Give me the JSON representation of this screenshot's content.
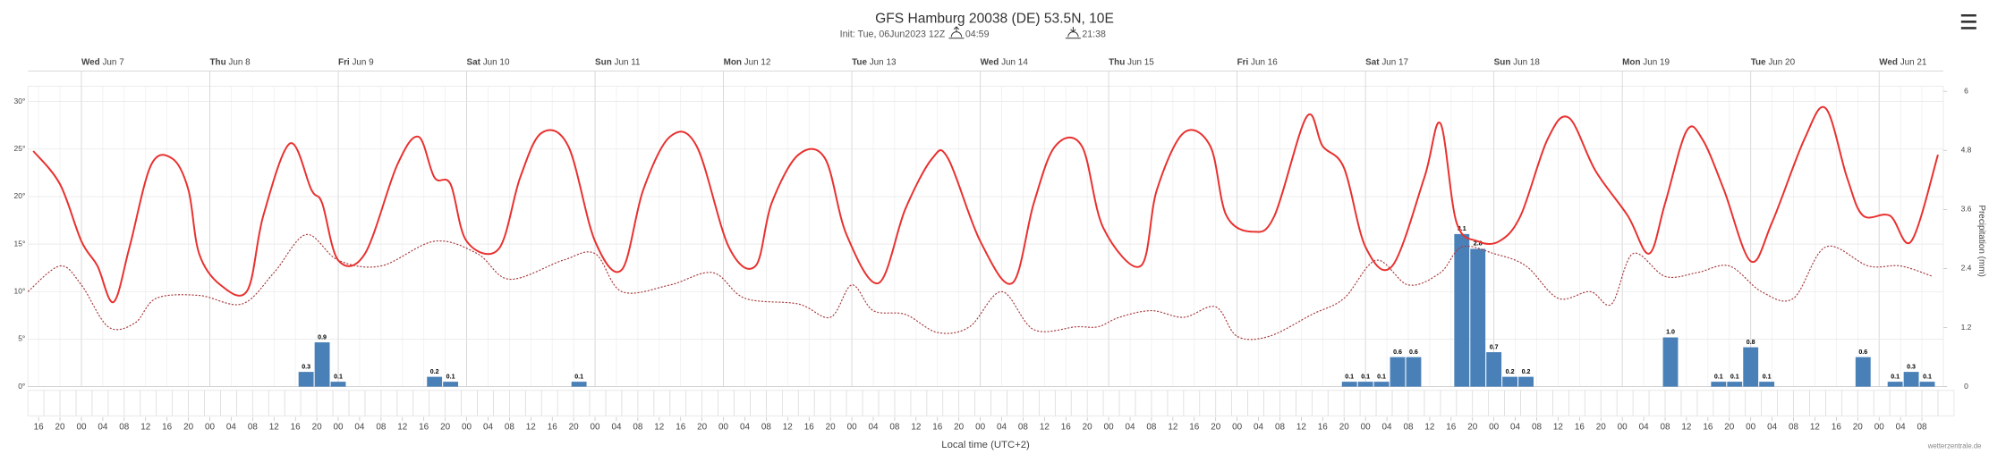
{
  "chart_data": {
    "type": "meteogram",
    "title": "GFS Hamburg 20038 (DE) 53.5N, 10E",
    "init": "Init: Tue, 06Jun2023 12Z",
    "sunrise": "04:59",
    "sunset": "21:38",
    "xlabel": "Local time (UTC+2)",
    "y2label": "Precipitation (mm)",
    "credit": "wetterzentrale.de",
    "grid": true,
    "xlim": [
      -10,
      348
    ],
    "ylim": [
      0,
      31.6
    ],
    "y2lim": [
      0,
      6.1
    ],
    "yticks": [
      {
        "value": 0,
        "label": "0°"
      },
      {
        "value": 5,
        "label": "5°"
      },
      {
        "value": 10,
        "label": "10°"
      },
      {
        "value": 15,
        "label": "15°"
      },
      {
        "value": 20,
        "label": "20°"
      },
      {
        "value": 25,
        "label": "25°"
      },
      {
        "value": 30,
        "label": "30°"
      }
    ],
    "y2ticks": [
      0,
      1.2,
      2.4,
      3.6,
      4.8,
      6
    ],
    "x2ticks": [
      {
        "value": 0,
        "label": "Wed Jun 7"
      },
      {
        "value": 24,
        "label": "Thu Jun 8"
      },
      {
        "value": 48,
        "label": "Fri Jun 9"
      },
      {
        "value": 72,
        "label": "Sat Jun 10"
      },
      {
        "value": 96,
        "label": "Sun Jun 11"
      },
      {
        "value": 120,
        "label": "Mon Jun 12"
      },
      {
        "value": 144,
        "label": "Tue Jun 13"
      },
      {
        "value": 168,
        "label": "Wed Jun 14"
      },
      {
        "value": 192,
        "label": "Thu Jun 15"
      },
      {
        "value": 216,
        "label": "Fri Jun 16"
      },
      {
        "value": 240,
        "label": "Sat Jun 17"
      },
      {
        "value": 264,
        "label": "Sun Jun 18"
      },
      {
        "value": 288,
        "label": "Mon Jun 19"
      },
      {
        "value": 312,
        "label": "Tue Jun 20"
      },
      {
        "value": 336,
        "label": "Wed Jun 21"
      }
    ],
    "xticks": [
      {
        "value": -8,
        "label": "16"
      },
      {
        "value": -4,
        "label": "20"
      },
      {
        "value": 0,
        "label": "00"
      },
      {
        "value": 4,
        "label": "04"
      },
      {
        "value": 8,
        "label": "08"
      },
      {
        "value": 12,
        "label": "12"
      },
      {
        "value": 16,
        "label": "16"
      },
      {
        "value": 20,
        "label": "20"
      },
      {
        "value": 24,
        "label": "00"
      },
      {
        "value": 28,
        "label": "04"
      },
      {
        "value": 32,
        "label": "08"
      },
      {
        "value": 36,
        "label": "12"
      },
      {
        "value": 40,
        "label": "16"
      },
      {
        "value": 44,
        "label": "20"
      },
      {
        "value": 48,
        "label": "00"
      },
      {
        "value": 52,
        "label": "04"
      },
      {
        "value": 56,
        "label": "08"
      },
      {
        "value": 60,
        "label": "12"
      },
      {
        "value": 64,
        "label": "16"
      },
      {
        "value": 68,
        "label": "20"
      },
      {
        "value": 72,
        "label": "00"
      },
      {
        "value": 76,
        "label": "04"
      },
      {
        "value": 80,
        "label": "08"
      },
      {
        "value": 84,
        "label": "12"
      },
      {
        "value": 88,
        "label": "16"
      },
      {
        "value": 92,
        "label": "20"
      },
      {
        "value": 96,
        "label": "00"
      },
      {
        "value": 100,
        "label": "04"
      },
      {
        "value": 104,
        "label": "08"
      },
      {
        "value": 108,
        "label": "12"
      },
      {
        "value": 112,
        "label": "16"
      },
      {
        "value": 116,
        "label": "20"
      },
      {
        "value": 120,
        "label": "00"
      },
      {
        "value": 124,
        "label": "04"
      },
      {
        "value": 128,
        "label": "08"
      },
      {
        "value": 132,
        "label": "12"
      },
      {
        "value": 136,
        "label": "16"
      },
      {
        "value": 140,
        "label": "20"
      },
      {
        "value": 144,
        "label": "00"
      },
      {
        "value": 148,
        "label": "04"
      },
      {
        "value": 152,
        "label": "08"
      },
      {
        "value": 156,
        "label": "12"
      },
      {
        "value": 160,
        "label": "16"
      },
      {
        "value": 164,
        "label": "20"
      },
      {
        "value": 168,
        "label": "00"
      },
      {
        "value": 172,
        "label": "04"
      },
      {
        "value": 176,
        "label": "08"
      },
      {
        "value": 180,
        "label": "12"
      },
      {
        "value": 184,
        "label": "16"
      },
      {
        "value": 188,
        "label": "20"
      },
      {
        "value": 192,
        "label": "00"
      },
      {
        "value": 196,
        "label": "04"
      },
      {
        "value": 200,
        "label": "08"
      },
      {
        "value": 204,
        "label": "12"
      },
      {
        "value": 208,
        "label": "16"
      },
      {
        "value": 212,
        "label": "20"
      },
      {
        "value": 216,
        "label": "00"
      },
      {
        "value": 220,
        "label": "04"
      },
      {
        "value": 224,
        "label": "08"
      },
      {
        "value": 228,
        "label": "12"
      },
      {
        "value": 232,
        "label": "16"
      },
      {
        "value": 236,
        "label": "20"
      },
      {
        "value": 240,
        "label": "00"
      },
      {
        "value": 244,
        "label": "04"
      },
      {
        "value": 248,
        "label": "08"
      },
      {
        "value": 252,
        "label": "12"
      },
      {
        "value": 256,
        "label": "16"
      },
      {
        "value": 260,
        "label": "20"
      },
      {
        "value": 264,
        "label": "00"
      },
      {
        "value": 268,
        "label": "04"
      },
      {
        "value": 272,
        "label": "08"
      },
      {
        "value": 276,
        "label": "12"
      },
      {
        "value": 280,
        "label": "16"
      },
      {
        "value": 284,
        "label": "20"
      },
      {
        "value": 288,
        "label": "00"
      },
      {
        "value": 292,
        "label": "04"
      },
      {
        "value": 296,
        "label": "08"
      },
      {
        "value": 300,
        "label": "12"
      },
      {
        "value": 304,
        "label": "16"
      },
      {
        "value": 308,
        "label": "20"
      },
      {
        "value": 312,
        "label": "00"
      },
      {
        "value": 316,
        "label": "04"
      },
      {
        "value": 320,
        "label": "08"
      },
      {
        "value": 324,
        "label": "12"
      },
      {
        "value": 328,
        "label": "16"
      },
      {
        "value": 332,
        "label": "20"
      },
      {
        "value": 336,
        "label": "00"
      },
      {
        "value": 340,
        "label": "04"
      },
      {
        "value": 344,
        "label": "08"
      }
    ],
    "series": [
      {
        "type": "line",
        "color": "#e8312f",
        "line_style": "solid",
        "x": [
          -9,
          -4,
          0,
          3,
          6,
          9,
          13,
          17,
          20,
          22,
          26,
          31,
          34,
          39,
          43,
          45,
          48,
          53,
          59,
          63,
          66,
          69,
          72,
          78,
          82,
          86,
          91,
          96,
          101,
          105,
          110,
          115,
          121,
          126,
          129,
          134,
          139,
          143,
          149,
          154,
          159,
          162,
          168,
          174,
          178,
          182,
          187,
          191,
          198,
          201,
          206,
          211,
          214,
          219,
          223,
          229,
          232,
          236,
          240,
          245,
          251,
          254,
          257,
          261,
          265,
          269,
          274,
          278,
          283,
          289,
          293,
          296,
          300,
          303,
          307,
          312,
          316,
          322,
          326,
          330,
          333,
          338,
          342,
          347
        ],
        "values": [
          24.8,
          21.3,
          15.3,
          12.7,
          8.9,
          14.7,
          23.3,
          24,
          20.7,
          14,
          10.7,
          10.1,
          18,
          25.6,
          20.7,
          19.3,
          13.3,
          14,
          23.3,
          26.3,
          22,
          21.3,
          15.3,
          14.5,
          22,
          26.7,
          25.3,
          15.3,
          12.3,
          20.7,
          26.3,
          25.3,
          14.7,
          12.7,
          19.3,
          24.4,
          24,
          16,
          10.9,
          18.7,
          24,
          24,
          15.3,
          10.9,
          19.3,
          25.3,
          25.3,
          16.7,
          12.7,
          20.7,
          26.7,
          25.3,
          18,
          16.3,
          18,
          28.4,
          25.3,
          23,
          14.7,
          12.7,
          22,
          27.7,
          17.3,
          15.3,
          15.3,
          18,
          26,
          28.3,
          22.7,
          18,
          14,
          19.3,
          26.9,
          26,
          20.7,
          13.2,
          17.3,
          26,
          29.3,
          22,
          18,
          18,
          15.3,
          24.4
        ]
      },
      {
        "type": "line",
        "color": "#a5383b",
        "line_style": "dotted",
        "x": [
          -10,
          -4,
          0,
          5,
          10,
          14,
          22,
          30,
          36,
          42,
          48,
          56,
          66,
          74,
          80,
          90,
          96,
          101,
          110,
          118,
          124,
          134,
          140,
          144,
          148,
          154,
          160,
          166,
          172,
          178,
          186,
          190,
          194,
          200,
          206,
          212,
          216,
          222,
          230,
          236,
          242,
          248,
          254,
          258,
          264,
          270,
          276,
          282,
          286,
          290,
          296,
          302,
          308,
          314,
          320,
          326,
          334,
          340,
          346
        ],
        "values": [
          10,
          12.7,
          10.7,
          6.3,
          6.7,
          9.3,
          9.6,
          8.7,
          12,
          16,
          13.3,
          12.7,
          15.3,
          14,
          11.3,
          13.3,
          14,
          10,
          10.7,
          12,
          9.3,
          8.7,
          7.3,
          10.7,
          8,
          7.6,
          5.7,
          6.3,
          10,
          6,
          6.3,
          6.3,
          7.3,
          8,
          7.3,
          8.4,
          5.3,
          5.3,
          7.6,
          9.3,
          13.3,
          10.7,
          12,
          14.7,
          14,
          12.7,
          9.3,
          10,
          8.7,
          14,
          11.6,
          12,
          12.7,
          10,
          9.3,
          14.7,
          12.7,
          12.7,
          11.6
        ]
      },
      {
        "type": "bar",
        "axis": "y2",
        "color": "#4a80b8",
        "width": 3,
        "x": [
          42,
          45,
          48,
          66,
          69,
          93,
          237,
          240,
          243,
          246,
          249,
          258,
          261,
          264,
          267,
          270,
          297,
          306,
          309,
          312,
          315,
          333,
          339,
          342,
          345
        ],
        "values": [
          0.3,
          0.9,
          0.1,
          0.2,
          0.1,
          0.1,
          0.1,
          0.1,
          0.1,
          0.6,
          0.6,
          3.1,
          2.8,
          0.7,
          0.2,
          0.2,
          1.0,
          0.1,
          0.1,
          0.8,
          0.1,
          0.6,
          0.1,
          0.3,
          0.1
        ],
        "value_labels": [
          "0.3",
          "0.9",
          "0.1",
          "0.2",
          "0.1",
          "0.1",
          "0.1",
          "0.1",
          "0.1",
          "0.6",
          "0.6",
          "3.1",
          "2.8",
          "0.7",
          "0.2",
          "0.2",
          "1.0",
          "0.1",
          "0.1",
          "0.8",
          "0.1",
          "0.6",
          "0.1",
          "0.3",
          "0.1"
        ]
      }
    ]
  }
}
